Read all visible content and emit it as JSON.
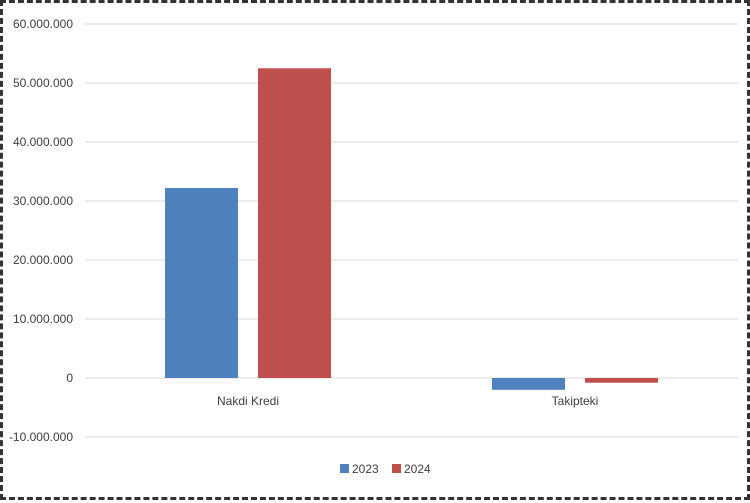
{
  "chart_data": {
    "type": "bar",
    "categories": [
      "Nakdi Kredi",
      "Takipteki"
    ],
    "series": [
      {
        "name": "2023",
        "values": [
          32200000,
          -2000000
        ],
        "color": "#4f81bd"
      },
      {
        "name": "2024",
        "values": [
          52500000,
          -800000
        ],
        "color": "#c0504d"
      }
    ],
    "ylim": [
      -10000000,
      60000000
    ],
    "yticks": [
      60000000,
      50000000,
      40000000,
      30000000,
      20000000,
      10000000,
      0,
      -10000000
    ],
    "ytick_labels": [
      "60.000.000",
      "50.000.000",
      "40.000.000",
      "30.000.000",
      "20.000.000",
      "10.000.000",
      "0",
      "-10.000.000"
    ],
    "title": "",
    "xlabel": "",
    "ylabel": "",
    "grid": true,
    "legend": "bottom-center",
    "gridline_color": "#d9d9d9"
  }
}
